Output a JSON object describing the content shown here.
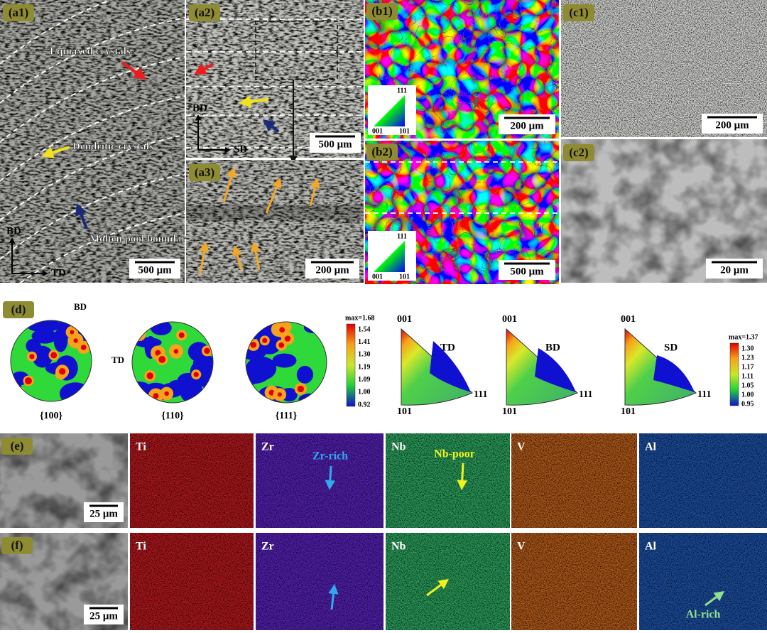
{
  "panels": {
    "a1": {
      "label": "(a1)",
      "annotations": [
        "Equiaxed crystals",
        "Dendritic crystals",
        "Molten pool boundary"
      ],
      "axes": [
        "BD",
        "TD"
      ],
      "scale_bar": "500 μm"
    },
    "a2": {
      "label": "(a2)",
      "axes": [
        "BD",
        "SD"
      ],
      "scale_bar": "500 μm"
    },
    "a3": {
      "label": "(a3)",
      "scale_bar": "200 μm"
    },
    "b1": {
      "label": "(b1)",
      "ipf_key": [
        "111",
        "001",
        "101"
      ],
      "scale_bar": "200 μm"
    },
    "b2": {
      "label": "(b2)",
      "ipf_key": [
        "111",
        "001",
        "101"
      ],
      "scale_bar": "500 μm"
    },
    "c1": {
      "label": "(c1)",
      "scale_bar": "200 μm"
    },
    "c2": {
      "label": "(c2)",
      "scale_bar": "20 μm"
    },
    "d": {
      "label": "(d)",
      "pole_figures": {
        "directions": [
          "BD",
          "TD"
        ],
        "planes": [
          "{100}",
          "{110}",
          "{111}"
        ],
        "legend": {
          "max": "max=1.68",
          "ticks": [
            "1.54",
            "1.41",
            "1.30",
            "1.19",
            "1.09",
            "1.00",
            "0.92"
          ]
        }
      },
      "inverse_pole_figures": {
        "corners": [
          "001",
          "101",
          "111"
        ],
        "directions": [
          "TD",
          "BD",
          "SD"
        ],
        "legend": {
          "max": "max=1.37",
          "ticks": [
            "1.30",
            "1.23",
            "1.17",
            "1.11",
            "1.05",
            "1.00",
            "0.95"
          ]
        }
      }
    },
    "e": {
      "label": "(e)",
      "scale_bar": "25 μm",
      "elements": [
        "Ti",
        "Zr",
        "Nb",
        "V",
        "Al"
      ],
      "annotations": [
        "Zr-rich",
        "Nb-poor"
      ]
    },
    "f": {
      "label": "(f)",
      "scale_bar": "25 μm",
      "elements": [
        "Ti",
        "Zr",
        "Nb",
        "V",
        "Al"
      ],
      "annotations": [
        "Al-rich"
      ]
    }
  }
}
